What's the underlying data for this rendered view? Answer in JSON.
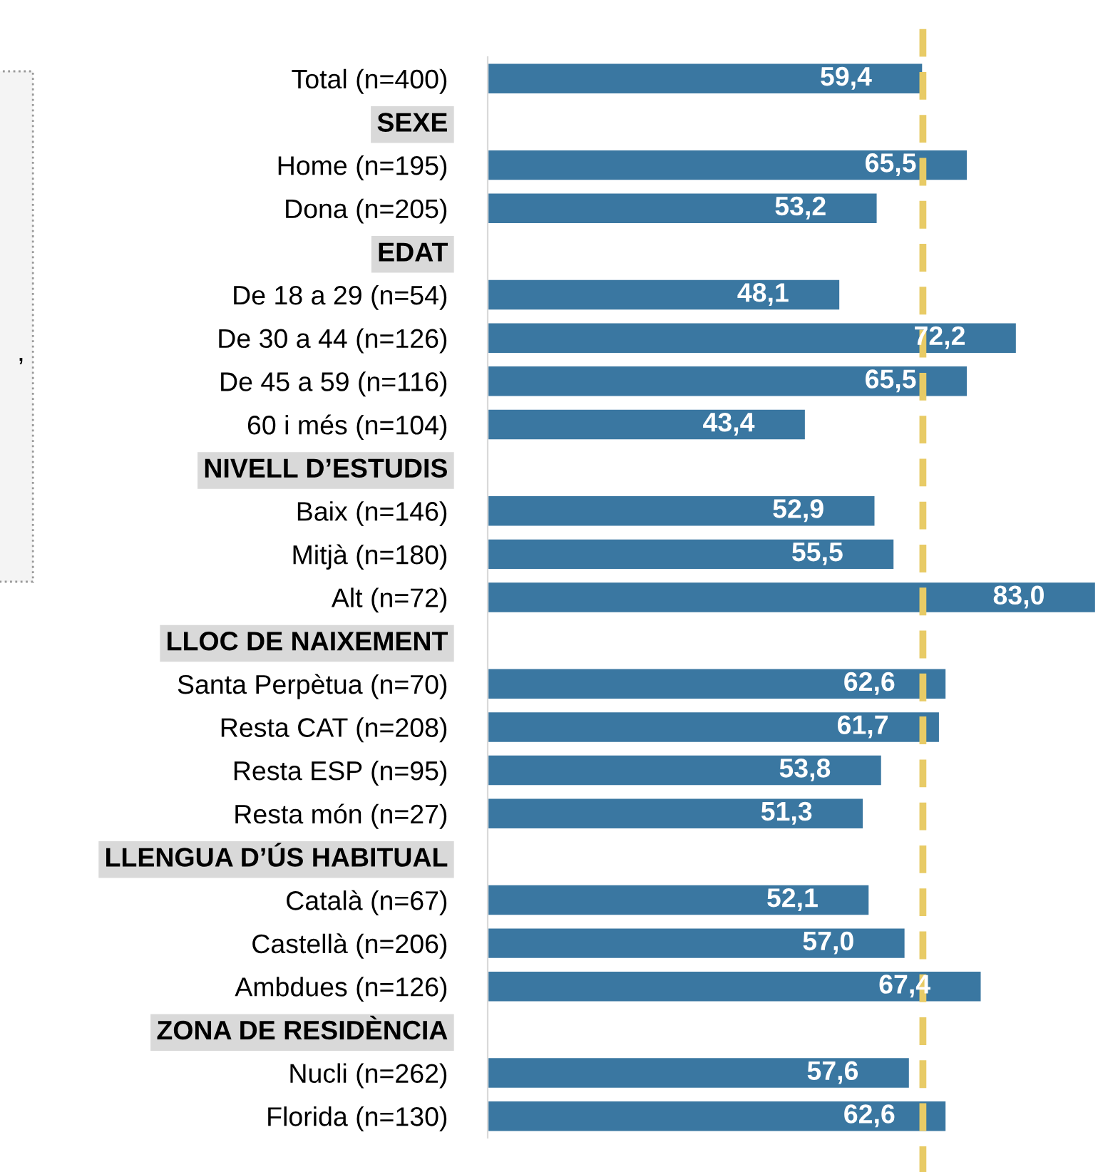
{
  "chart_data": {
    "type": "bar",
    "orientation": "horizontal",
    "categories": [
      "Total (n=400)",
      "SEXE",
      "Home (n=195)",
      "Dona (n=205)",
      "EDAT",
      "De 18 a 29 (n=54)",
      "De 30 a 44 (n=126)",
      "De 45 a 59 (n=116)",
      "60 i més (n=104)",
      "NIVELL D’ESTUDIS",
      "Baix (n=146)",
      "Mitjà (n=180)",
      "Alt (n=72)",
      "LLOC DE NAIXEMENT",
      "Santa Perpètua (n=70)",
      "Resta CAT (n=208)",
      "Resta ESP (n=95)",
      "Resta món (n=27)",
      "LLENGUA D’ÚS HABITUAL",
      "Català (n=67)",
      "Castellà (n=206)",
      "Ambdues (n=126)",
      "ZONA DE RESIDÈNCIA",
      "Nucli (n=262)",
      "Florida (n=130)"
    ],
    "values": [
      59.4,
      null,
      65.5,
      53.2,
      null,
      48.1,
      72.2,
      65.5,
      43.4,
      null,
      52.9,
      55.5,
      83.0,
      null,
      62.6,
      61.7,
      53.8,
      51.3,
      null,
      52.1,
      57.0,
      67.4,
      null,
      57.6,
      62.6
    ],
    "value_labels": [
      "59,4",
      null,
      "65,5",
      "53,2",
      null,
      "48,1",
      "72,2",
      "65,5",
      "43,4",
      null,
      "52,9",
      "55,5",
      "83,0",
      null,
      "62,6",
      "61,7",
      "53,8",
      "51,3",
      null,
      "52,1",
      "57,0",
      "67,4",
      null,
      "57,6",
      "62,6"
    ],
    "color": "#3a77a1",
    "ref_lines": [
      {
        "axis": "x",
        "value": 59.4,
        "color": "#e8cb66",
        "line_style": "dashed"
      }
    ],
    "annotations": [
      ","
    ],
    "tick_labels": "y",
    "grid": false,
    "legend": false
  }
}
